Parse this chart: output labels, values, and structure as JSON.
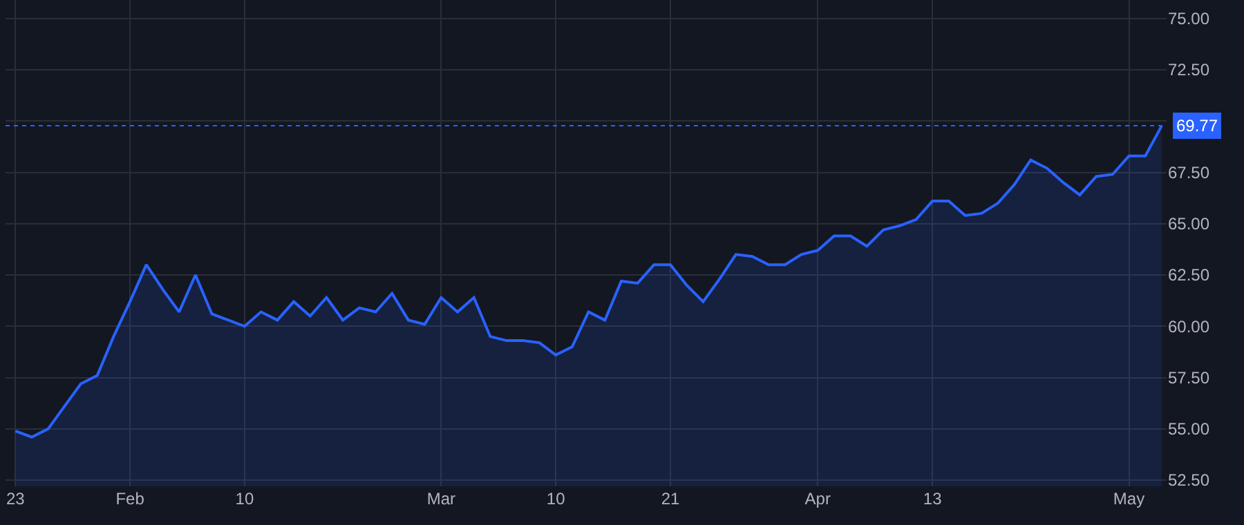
{
  "chart_data": {
    "type": "area",
    "categories": [
      "23",
      null,
      null,
      null,
      null,
      null,
      null,
      "Feb",
      null,
      null,
      null,
      null,
      null,
      null,
      "10",
      null,
      null,
      null,
      null,
      null,
      null,
      null,
      null,
      null,
      null,
      null,
      "Mar",
      null,
      null,
      null,
      null,
      null,
      null,
      "10",
      null,
      null,
      null,
      null,
      null,
      null,
      "21",
      null,
      null,
      null,
      null,
      null,
      null,
      null,
      null,
      "Apr",
      null,
      null,
      null,
      null,
      null,
      null,
      "13",
      null,
      null,
      null,
      null,
      null,
      null,
      null,
      null,
      null,
      null,
      null,
      "May",
      null,
      null
    ],
    "series": [
      {
        "color": "#2962ff",
        "values": [
          54.9,
          54.6,
          55.0,
          56.1,
          57.2,
          57.6,
          59.5,
          61.2,
          63.0,
          61.8,
          60.7,
          62.5,
          60.6,
          60.3,
          60.0,
          60.7,
          60.3,
          61.2,
          60.5,
          61.4,
          60.3,
          60.9,
          60.7,
          61.6,
          60.3,
          60.1,
          61.4,
          60.7,
          61.4,
          59.5,
          59.3,
          59.3,
          59.2,
          58.6,
          59.0,
          60.7,
          60.3,
          62.2,
          62.1,
          63.0,
          63.0,
          62.0,
          61.2,
          62.3,
          63.5,
          63.4,
          63.0,
          63.0,
          63.5,
          63.7,
          64.4,
          64.4,
          63.9,
          64.7,
          64.9,
          65.2,
          66.1,
          66.1,
          65.4,
          65.5,
          66.0,
          66.9,
          68.1,
          67.7,
          67.0,
          66.4,
          67.3,
          67.4,
          68.3,
          68.3,
          69.77
        ]
      }
    ],
    "ylim": [
      52.2,
      75.9
    ],
    "yticks": [
      {
        "value": 52.5,
        "label": "52.50"
      },
      {
        "value": 55,
        "label": "55.00"
      },
      {
        "value": 57.5,
        "label": "57.50"
      },
      {
        "value": 60,
        "label": "60.00"
      },
      {
        "value": 62.5,
        "label": "62.50"
      },
      {
        "value": 65,
        "label": "65.00"
      },
      {
        "value": 67.5,
        "label": "67.50"
      },
      {
        "value": 70,
        "label": null
      },
      {
        "value": 72.5,
        "label": "72.50"
      },
      {
        "value": 75,
        "label": "75.00"
      }
    ],
    "ref_lines": [
      {
        "axis": "y",
        "value": 69.77,
        "label": "69.77",
        "color": "#2962ff",
        "line_style": "dotted"
      }
    ],
    "grid": true,
    "marker": "none",
    "line_style": "solid"
  }
}
